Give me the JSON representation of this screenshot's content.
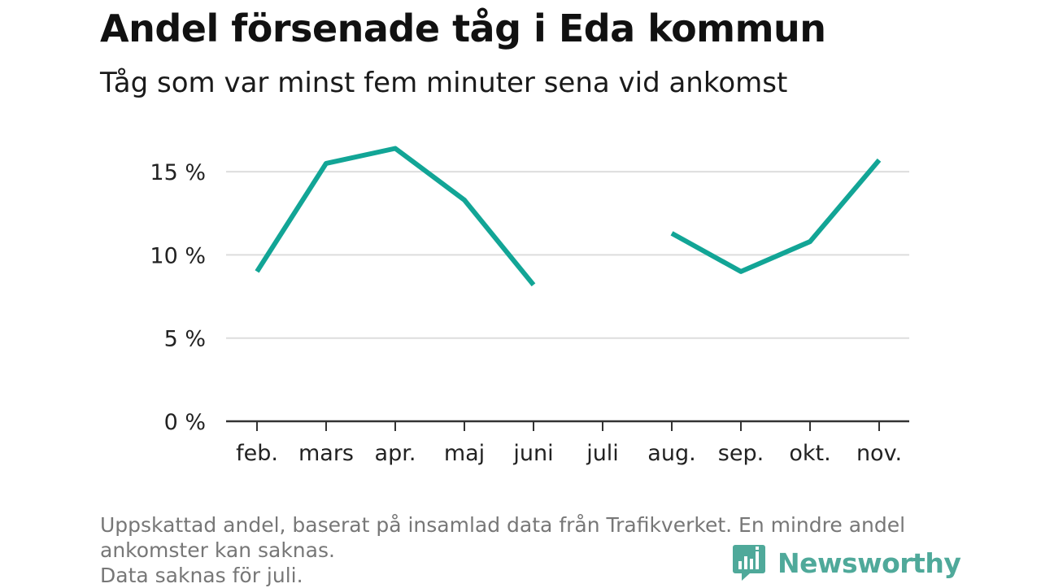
{
  "header": {
    "title": "Andel försenade tåg i Eda kommun",
    "subtitle": "Tåg som var minst fem minuter sena vid ankomst"
  },
  "chart_data": {
    "type": "line",
    "categories": [
      "feb.",
      "mars",
      "apr.",
      "maj",
      "juni",
      "juli",
      "aug.",
      "sep.",
      "okt.",
      "nov."
    ],
    "series": [
      {
        "values": [
          9.0,
          15.5,
          16.4,
          13.3,
          8.2,
          null,
          11.3,
          9.0,
          10.8,
          15.7
        ]
      }
    ],
    "yticks": [
      0,
      5,
      10,
      15
    ],
    "ytick_labels": [
      "0 %",
      "5 %",
      "10 %",
      "15 %"
    ],
    "ylim": [
      0,
      17.5
    ],
    "grid": true,
    "line_color": "#12a596",
    "grid_color": "#dddddd"
  },
  "footnote": {
    "line1": "Uppskattad andel, baserat på insamlad data från Trafikverket. En mindre andel",
    "line2": "ankomster kan saknas.",
    "line3": "Data saknas för juli."
  },
  "brand": {
    "name": "Newsworthy",
    "icon": "newsworthy-logo-icon",
    "color": "#4fa99a"
  }
}
